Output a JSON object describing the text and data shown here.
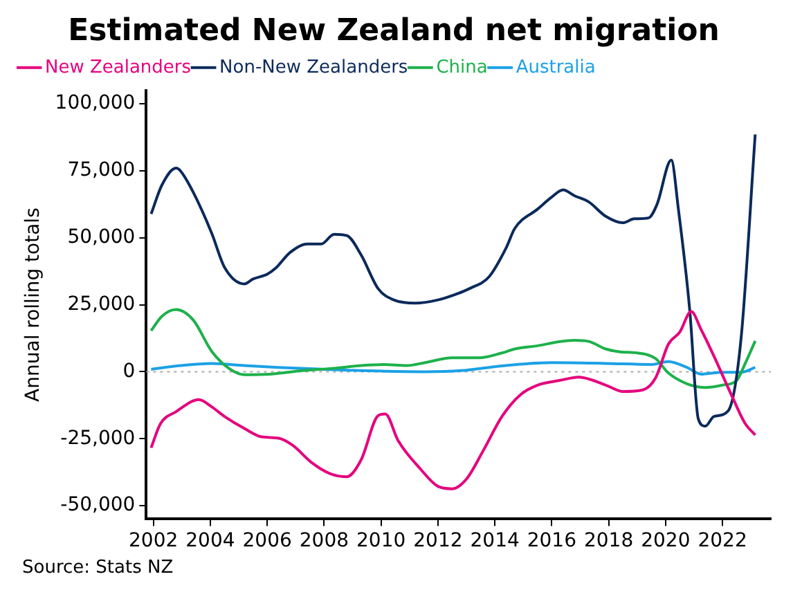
{
  "chart_data": {
    "type": "line",
    "title": "Estimated New Zealand net migration",
    "ylabel": "Annual rolling totals",
    "annotations": [
      "Source: Stats NZ"
    ],
    "legend": "top left",
    "grid": false,
    "marker": "none",
    "line_style": "solid",
    "xlim": [
      2001.75,
      2023.7
    ],
    "xticks": [
      2002,
      2004,
      2006,
      2008,
      2010,
      2012,
      2014,
      2016,
      2018,
      2020,
      2022
    ],
    "ylim": [
      -55000,
      105000
    ],
    "yticks": [
      {
        "value": -50000,
        "label": "-50,000"
      },
      {
        "value": -25000,
        "label": "-25,000"
      },
      {
        "value": 0,
        "label": "0"
      },
      {
        "value": 25000,
        "label": "25,000"
      },
      {
        "value": 50000,
        "label": "50,000"
      },
      {
        "value": 75000,
        "label": "75,000"
      },
      {
        "value": 100000,
        "label": "100,000"
      }
    ],
    "ref_lines": [
      {
        "axis": "y",
        "value": 0,
        "color": "#aaaaaa",
        "line_style": "dotted"
      }
    ],
    "series": [
      {
        "name": "New Zealanders",
        "color": "#e5007d",
        "x": [
          2001.92,
          2002.25,
          2002.8,
          2003.6,
          2004.05,
          2004.5,
          2005.2,
          2005.8,
          2006.4,
          2006.9,
          2007.55,
          2008.2,
          2008.8,
          2009.3,
          2009.9,
          2010.15,
          2010.6,
          2011.4,
          2012.0,
          2012.5,
          2013.0,
          2013.6,
          2014.25,
          2014.9,
          2015.5,
          2016.3,
          2016.95,
          2017.9,
          2018.5,
          2019.2,
          2019.65,
          2020.1,
          2020.5,
          2020.9,
          2021.25,
          2021.7,
          2022.35,
          2022.8,
          2023.15
        ],
        "values": [
          -28400,
          -19400,
          -14900,
          -10400,
          -13100,
          -16700,
          -21200,
          -24300,
          -24800,
          -27500,
          -33800,
          -38000,
          -39200,
          -32900,
          -16400,
          -15800,
          -25700,
          -36500,
          -42800,
          -43700,
          -40100,
          -29300,
          -16700,
          -8600,
          -5000,
          -3200,
          -2000,
          -5000,
          -7400,
          -6800,
          -2300,
          10300,
          14800,
          22500,
          15700,
          5800,
          -9500,
          -19400,
          -23600
        ]
      },
      {
        "name": "Non-New Zealanders",
        "color": "#0b2a5b",
        "x": [
          2001.92,
          2002.3,
          2002.8,
          2002.95,
          2003.4,
          2004.05,
          2004.5,
          2005.2,
          2005.5,
          2006.0,
          2006.3,
          2006.8,
          2007.4,
          2007.9,
          2008.35,
          2008.8,
          2009.3,
          2009.9,
          2010.45,
          2011.2,
          2012.0,
          2012.7,
          2013.1,
          2013.8,
          2014.4,
          2014.7,
          2015.5,
          2016.0,
          2016.4,
          2016.8,
          2017.3,
          2017.9,
          2018.5,
          2018.9,
          2019.4,
          2019.7,
          2020.2,
          2020.45,
          2020.85,
          2021.15,
          2021.4,
          2021.7,
          2022.2,
          2022.65,
          2023.15
        ],
        "values": [
          58900,
          69700,
          76000,
          75000,
          67000,
          51700,
          39000,
          32800,
          34600,
          36400,
          38700,
          44500,
          47700,
          47700,
          51300,
          50800,
          43600,
          31000,
          26800,
          25600,
          26800,
          29200,
          31000,
          35500,
          46300,
          53500,
          60700,
          65200,
          67900,
          65700,
          63400,
          58000,
          55600,
          57100,
          57400,
          62500,
          79000,
          60700,
          22900,
          -17600,
          -20300,
          -16700,
          -14600,
          12100,
          88600
        ]
      },
      {
        "name": "China",
        "color": "#1db14b",
        "x": [
          2001.92,
          2002.3,
          2002.8,
          2003.4,
          2004.05,
          2004.7,
          2005.2,
          2006.1,
          2007.25,
          2008.35,
          2009.3,
          2010.1,
          2010.9,
          2011.55,
          2012.5,
          2013.45,
          2014.25,
          2014.7,
          2015.5,
          2016.3,
          2016.8,
          2017.3,
          2017.9,
          2018.4,
          2019.0,
          2019.65,
          2020.1,
          2020.75,
          2021.4,
          2022.0,
          2022.5,
          2022.8,
          2023.15
        ],
        "values": [
          15300,
          20700,
          23200,
          19300,
          7600,
          900,
          -1100,
          -900,
          400,
          1300,
          2300,
          2700,
          2300,
          3400,
          5200,
          5200,
          7000,
          8500,
          9700,
          11300,
          11700,
          11300,
          8500,
          7400,
          7000,
          4900,
          -500,
          -4500,
          -5900,
          -5000,
          -3200,
          3100,
          11500
        ]
      },
      {
        "name": "Australia",
        "color": "#1ba1e6",
        "x": [
          2001.92,
          2002.95,
          2004.05,
          2005.2,
          2006.4,
          2008.0,
          2009.3,
          2010.1,
          2011.55,
          2012.8,
          2014.25,
          2016.0,
          2017.9,
          2019.5,
          2020.1,
          2020.75,
          2021.25,
          2022.0,
          2022.65,
          2023.15
        ],
        "values": [
          900,
          2300,
          3100,
          2300,
          1600,
          900,
          400,
          200,
          0,
          400,
          2200,
          3400,
          3100,
          2700,
          3800,
          1600,
          -900,
          -200,
          -200,
          1600
        ]
      }
    ]
  }
}
